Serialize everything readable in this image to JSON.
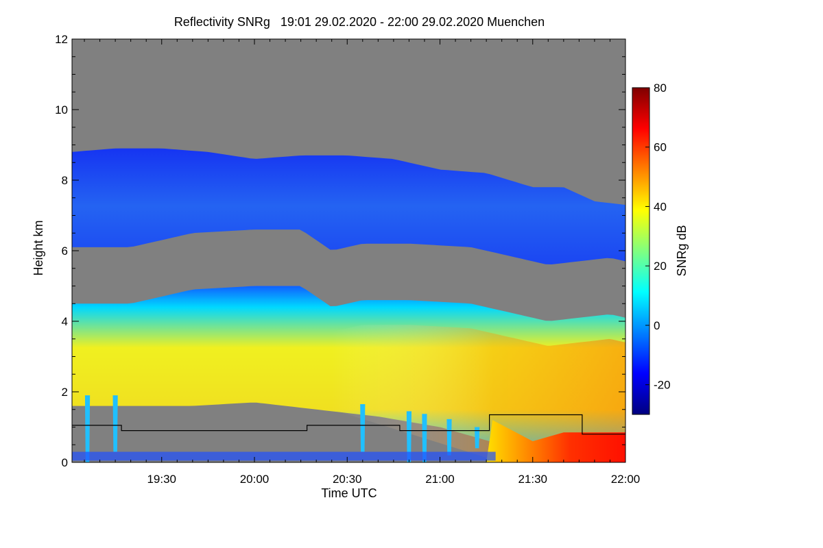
{
  "chart_data": {
    "type": "heatmap",
    "title": "Reflectivity SNRg   19:01 29.02.2020 - 22:00 29.02.2020 Muenchen",
    "xlabel": "Time UTC",
    "ylabel": "Height km",
    "x_ticks": [
      "19:30",
      "20:00",
      "20:30",
      "21:00",
      "21:30",
      "22:00"
    ],
    "x_tick_minutes": [
      30,
      60,
      90,
      120,
      150,
      180
    ],
    "xlim_minutes_since_19_00": [
      1,
      180
    ],
    "y_ticks": [
      "0",
      "2",
      "4",
      "6",
      "8",
      "10",
      "12"
    ],
    "ylim": [
      0,
      12
    ],
    "colorbar": {
      "label": "SNRg dB",
      "ticks": [
        "80",
        "60",
        "40",
        "20",
        "0",
        "-20"
      ],
      "tick_values": [
        80,
        60,
        40,
        20,
        0,
        -20
      ],
      "range": [
        -30,
        80
      ],
      "colors": [
        "#00007f",
        "#0000ff",
        "#0080ff",
        "#00ffff",
        "#80ff80",
        "#ffff00",
        "#ff8000",
        "#ff0000",
        "#7f0000"
      ]
    },
    "background_color": "#808080",
    "cloud_top_km": [
      [
        1,
        8.8
      ],
      [
        15,
        8.9
      ],
      [
        30,
        8.9
      ],
      [
        45,
        8.8
      ],
      [
        60,
        8.6
      ],
      [
        75,
        8.7
      ],
      [
        90,
        8.7
      ],
      [
        105,
        8.6
      ],
      [
        120,
        8.3
      ],
      [
        135,
        8.2
      ],
      [
        150,
        7.8
      ],
      [
        160,
        7.8
      ],
      [
        170,
        7.4
      ],
      [
        180,
        7.3
      ]
    ],
    "lower_layer_top_km": [
      [
        1,
        4.5
      ],
      [
        20,
        4.5
      ],
      [
        40,
        4.9
      ],
      [
        60,
        5.0
      ],
      [
        75,
        5.0
      ],
      [
        85,
        4.4
      ],
      [
        95,
        4.6
      ],
      [
        110,
        4.6
      ],
      [
        130,
        4.5
      ],
      [
        145,
        4.2
      ],
      [
        155,
        4.0
      ],
      [
        165,
        4.1
      ],
      [
        175,
        4.2
      ],
      [
        180,
        4.1
      ]
    ],
    "lower_layer_base_km": [
      [
        1,
        1.6
      ],
      [
        20,
        1.6
      ],
      [
        40,
        1.6
      ],
      [
        60,
        1.7
      ],
      [
        80,
        1.5
      ],
      [
        100,
        1.3
      ],
      [
        120,
        1.0
      ],
      [
        140,
        0.5
      ],
      [
        150,
        0.0
      ],
      [
        180,
        0.0
      ]
    ],
    "black_line_km": [
      [
        1,
        1.05
      ],
      [
        17,
        1.05
      ],
      [
        17,
        0.9
      ],
      [
        77,
        0.9
      ],
      [
        77,
        1.05
      ],
      [
        107,
        1.05
      ],
      [
        107,
        0.9
      ],
      [
        136,
        0.9
      ],
      [
        136,
        1.35
      ],
      [
        166,
        1.35
      ],
      [
        166,
        0.8
      ],
      [
        180,
        0.8
      ]
    ]
  }
}
